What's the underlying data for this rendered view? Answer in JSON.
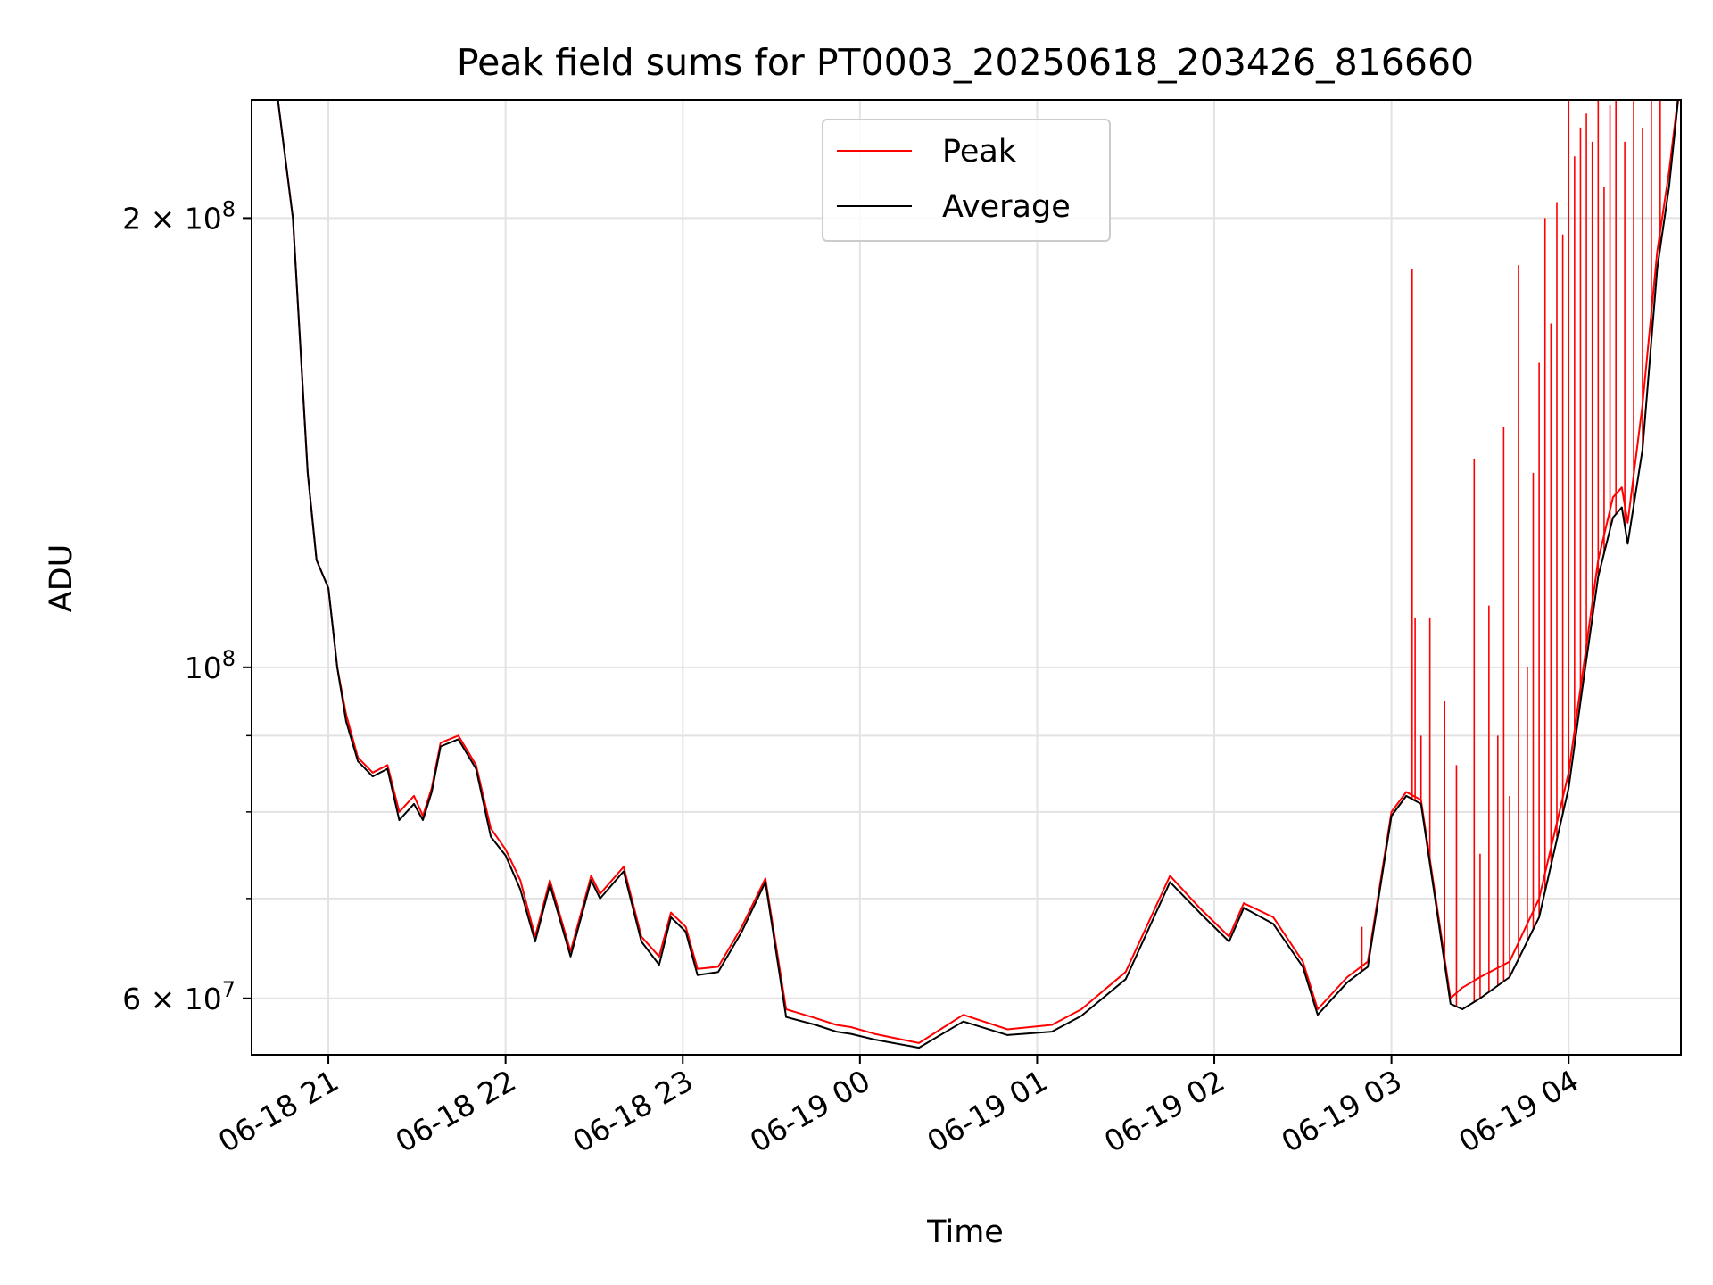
{
  "chart_data": {
    "type": "line",
    "title": "Peak field sums for PT0003_20250618_203426_816660",
    "xlabel": "Time",
    "ylabel": "ADU",
    "yscale": "log",
    "xlim": [
      "2025-06-18 20:34",
      "2025-06-19 04:38"
    ],
    "ylim": [
      55000000,
      240000000
    ],
    "grid": true,
    "legend": "upper center",
    "x_ticks": [
      "06-18 21",
      "06-18 22",
      "06-18 23",
      "06-19 00",
      "06-19 01",
      "06-19 02",
      "06-19 03",
      "06-19 04"
    ],
    "y_ticks": [
      {
        "value": 200000000,
        "mant": "2",
        "times": " × 10",
        "exp": "8"
      },
      {
        "value": 100000000,
        "mant": "",
        "times": "10",
        "exp": "8"
      },
      {
        "value": 60000000,
        "mant": "6",
        "times": " × 10",
        "exp": "7"
      }
    ],
    "x": [
      "2025-06-18 20:34",
      "2025-06-18 20:42",
      "2025-06-18 20:48",
      "2025-06-18 20:53",
      "2025-06-18 20:56",
      "2025-06-18 21:00",
      "2025-06-18 21:03",
      "2025-06-18 21:06",
      "2025-06-18 21:10",
      "2025-06-18 21:15",
      "2025-06-18 21:20",
      "2025-06-18 21:24",
      "2025-06-18 21:29",
      "2025-06-18 21:32",
      "2025-06-18 21:35",
      "2025-06-18 21:38",
      "2025-06-18 21:44",
      "2025-06-18 21:50",
      "2025-06-18 21:55",
      "2025-06-18 22:00",
      "2025-06-18 22:05",
      "2025-06-18 22:10",
      "2025-06-18 22:15",
      "2025-06-18 22:22",
      "2025-06-18 22:29",
      "2025-06-18 22:32",
      "2025-06-18 22:40",
      "2025-06-18 22:46",
      "2025-06-18 22:52",
      "2025-06-18 22:56",
      "2025-06-18 23:01",
      "2025-06-18 23:05",
      "2025-06-18 23:12",
      "2025-06-18 23:20",
      "2025-06-18 23:28",
      "2025-06-18 23:35",
      "2025-06-18 23:45",
      "2025-06-18 23:52",
      "2025-06-18 23:57",
      "2025-06-19 00:05",
      "2025-06-19 00:20",
      "2025-06-19 00:35",
      "2025-06-19 00:50",
      "2025-06-19 01:05",
      "2025-06-19 01:15",
      "2025-06-19 01:30",
      "2025-06-19 01:45",
      "2025-06-19 01:55",
      "2025-06-19 02:05",
      "2025-06-19 02:10",
      "2025-06-19 02:20",
      "2025-06-19 02:30",
      "2025-06-19 02:35",
      "2025-06-19 02:45",
      "2025-06-19 02:52",
      "2025-06-19 03:00",
      "2025-06-19 03:05",
      "2025-06-19 03:10",
      "2025-06-19 03:15",
      "2025-06-19 03:20",
      "2025-06-19 03:24",
      "2025-06-19 03:30",
      "2025-06-19 03:40",
      "2025-06-19 03:50",
      "2025-06-19 04:00",
      "2025-06-19 04:05",
      "2025-06-19 04:10",
      "2025-06-19 04:15",
      "2025-06-19 04:18",
      "2025-06-19 04:20",
      "2025-06-19 04:25",
      "2025-06-19 04:30",
      "2025-06-19 04:34",
      "2025-06-19 04:38"
    ],
    "series": [
      {
        "name": "Peak",
        "color": "#ff0000",
        "values": [
          250000000,
          248000000,
          200000000,
          135000000,
          118000000,
          113000000,
          100000000,
          93000000,
          87000000,
          85000000,
          86000000,
          80000000,
          82000000,
          79500000,
          83000000,
          89000000,
          90000000,
          86000000,
          78000000,
          75500000,
          72000000,
          66000000,
          72000000,
          64500000,
          72500000,
          70500000,
          73500000,
          66000000,
          64000000,
          68500000,
          67000000,
          62800000,
          63000000,
          67000000,
          72200000,
          59000000,
          58200000,
          57600000,
          57400000,
          56800000,
          56000000,
          58500000,
          57200000,
          57600000,
          59000000,
          62500000,
          72500000,
          69000000,
          66000000,
          69500000,
          68000000,
          63500000,
          59000000,
          62000000,
          63500000,
          80000000,
          82500000,
          81500000,
          70000000,
          60000000,
          61000000,
          62000000,
          63500000,
          70000000,
          85000000,
          100000000,
          118000000,
          130000000,
          132000000,
          125000000,
          150000000,
          190000000,
          215000000,
          250000000
        ]
      },
      {
        "name": "Average",
        "color": "#000000",
        "values": [
          250000000,
          248000000,
          200000000,
          135000000,
          118000000,
          113000000,
          100000000,
          92000000,
          86500000,
          84500000,
          85500000,
          79000000,
          81000000,
          79000000,
          82500000,
          88500000,
          89500000,
          85500000,
          77000000,
          74800000,
          71000000,
          65500000,
          71500000,
          64000000,
          72000000,
          70000000,
          73000000,
          65500000,
          63200000,
          68000000,
          66500000,
          62200000,
          62500000,
          66500000,
          71800000,
          58300000,
          57600000,
          57000000,
          56800000,
          56300000,
          55600000,
          57900000,
          56700000,
          57000000,
          58400000,
          61800000,
          71800000,
          68500000,
          65500000,
          69000000,
          67300000,
          63000000,
          58500000,
          61500000,
          63000000,
          79500000,
          82000000,
          81000000,
          69500000,
          59500000,
          59000000,
          60000000,
          62000000,
          68000000,
          83000000,
          98000000,
          115000000,
          126000000,
          128000000,
          121000000,
          140000000,
          185000000,
          210000000,
          250000000
        ]
      }
    ],
    "spikes": [
      {
        "x": "2025-06-19 02:50",
        "value": 67000000
      },
      {
        "x": "2025-06-19 03:07",
        "value": 185000000
      },
      {
        "x": "2025-06-19 03:08",
        "value": 108000000
      },
      {
        "x": "2025-06-19 03:10",
        "value": 90000000
      },
      {
        "x": "2025-06-19 03:13",
        "value": 108000000
      },
      {
        "x": "2025-06-19 03:18",
        "value": 95000000
      },
      {
        "x": "2025-06-19 03:22",
        "value": 86000000
      },
      {
        "x": "2025-06-19 03:28",
        "value": 138000000
      },
      {
        "x": "2025-06-19 03:30",
        "value": 75000000
      },
      {
        "x": "2025-06-19 03:33",
        "value": 110000000
      },
      {
        "x": "2025-06-19 03:36",
        "value": 90000000
      },
      {
        "x": "2025-06-19 03:38",
        "value": 145000000
      },
      {
        "x": "2025-06-19 03:40",
        "value": 82000000
      },
      {
        "x": "2025-06-19 03:43",
        "value": 186000000
      },
      {
        "x": "2025-06-19 03:46",
        "value": 100000000
      },
      {
        "x": "2025-06-19 03:48",
        "value": 135000000
      },
      {
        "x": "2025-06-19 03:50",
        "value": 160000000
      },
      {
        "x": "2025-06-19 03:52",
        "value": 200000000
      },
      {
        "x": "2025-06-19 03:54",
        "value": 170000000
      },
      {
        "x": "2025-06-19 03:56",
        "value": 205000000
      },
      {
        "x": "2025-06-19 03:58",
        "value": 195000000
      },
      {
        "x": "2025-06-19 04:00",
        "value": 240000000
      },
      {
        "x": "2025-06-19 04:02",
        "value": 220000000
      },
      {
        "x": "2025-06-19 04:04",
        "value": 230000000
      },
      {
        "x": "2025-06-19 04:06",
        "value": 235000000
      },
      {
        "x": "2025-06-19 04:08",
        "value": 225000000
      },
      {
        "x": "2025-06-19 04:10",
        "value": 240000000
      },
      {
        "x": "2025-06-19 04:12",
        "value": 210000000
      },
      {
        "x": "2025-06-19 04:14",
        "value": 238000000
      },
      {
        "x": "2025-06-19 04:16",
        "value": 240000000
      },
      {
        "x": "2025-06-19 04:19",
        "value": 225000000
      },
      {
        "x": "2025-06-19 04:22",
        "value": 240000000
      },
      {
        "x": "2025-06-19 04:25",
        "value": 230000000
      },
      {
        "x": "2025-06-19 04:28",
        "value": 240000000
      },
      {
        "x": "2025-06-19 04:31",
        "value": 240000000
      }
    ]
  }
}
